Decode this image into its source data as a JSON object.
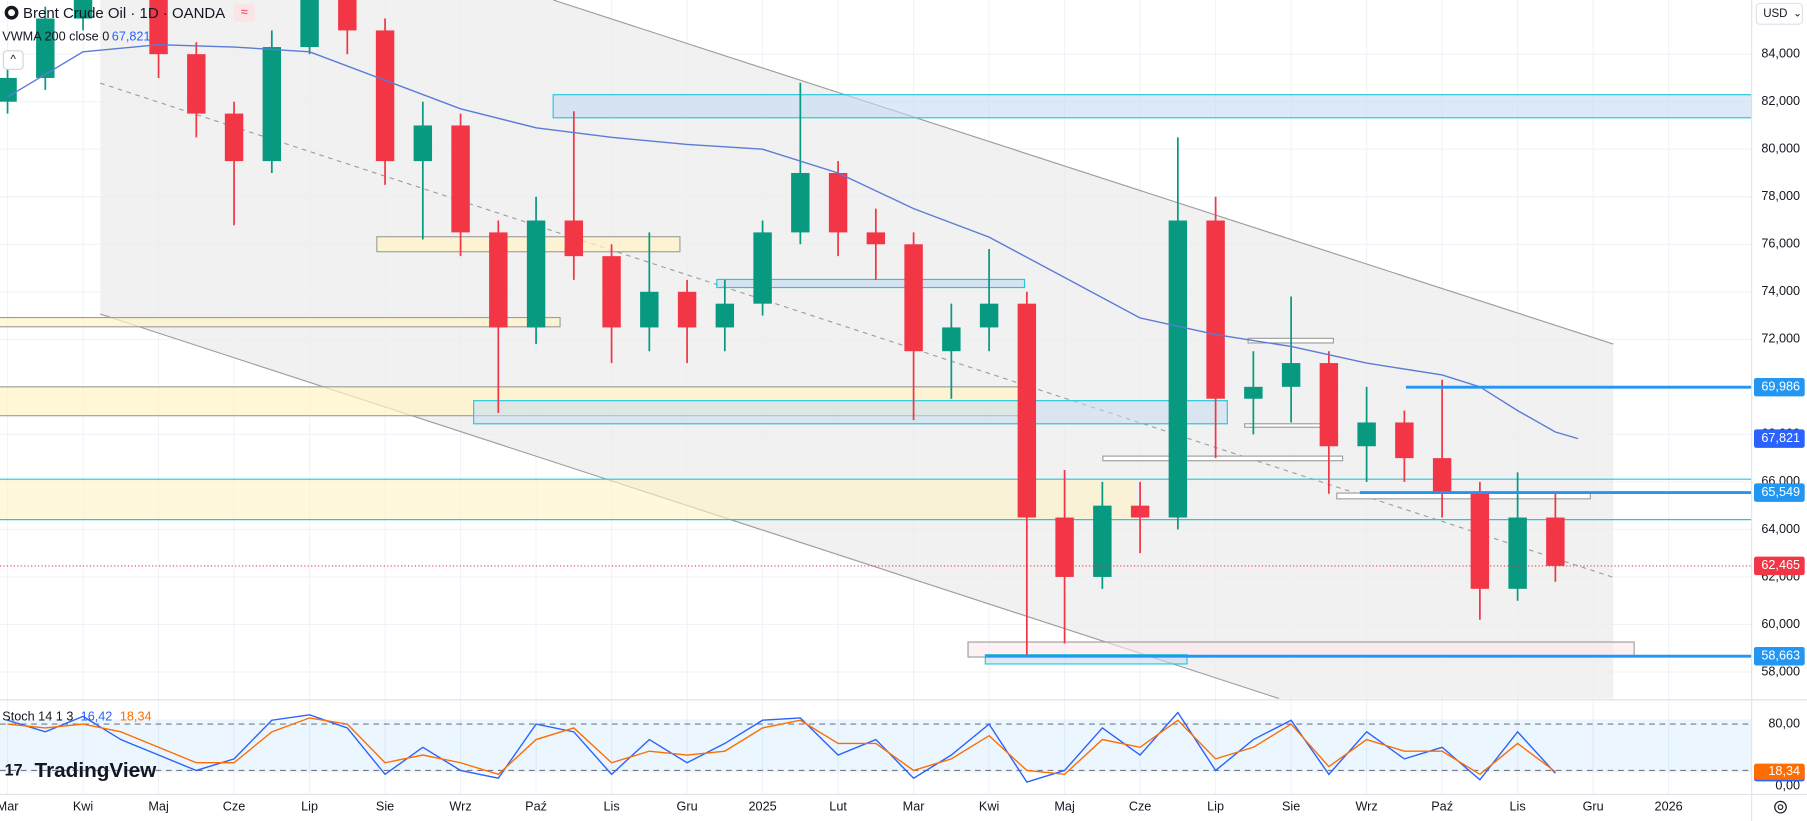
{
  "chart_data": {
    "type": "candlestick",
    "title": "Brent Crude Oil · 1D · OANDA",
    "currency": "USD",
    "indicator": {
      "name": "VWMA 200 close 0",
      "value_label": "67,821",
      "color": "#5b7bd6",
      "x": [
        0,
        1,
        2,
        3,
        4,
        5,
        6,
        7,
        8,
        9,
        10,
        11,
        12,
        13,
        14,
        15,
        16,
        17,
        18,
        19,
        19.5,
        20,
        20.5,
        20.8
      ],
      "values": [
        82.2,
        84.1,
        84.4,
        84.3,
        84.1,
        82.9,
        81.7,
        80.9,
        80.5,
        80.2,
        80.0,
        79.0,
        77.5,
        76.3,
        74.6,
        72.9,
        72.2,
        71.7,
        71.0,
        70.5,
        70.0,
        69.0,
        68.1,
        67.821
      ]
    },
    "candles": {
      "up_color": "#089981",
      "down_color": "#f23645",
      "x": [
        0,
        0.5,
        1,
        1.5,
        2,
        2.5,
        3,
        3.5,
        4,
        4.5,
        5,
        5.5,
        6,
        6.5,
        7,
        7.5,
        8,
        8.5,
        9,
        9.5,
        10,
        10.5,
        11,
        11.5,
        12,
        12.5,
        13,
        13.5,
        14,
        14.5,
        15,
        15.5,
        16,
        16.5,
        17,
        17.5,
        18,
        18.5,
        19,
        19.5,
        20,
        20.5
      ],
      "open": [
        82.0,
        83.0,
        85.5,
        88.5,
        89.0,
        84.0,
        81.5,
        79.5,
        84.3,
        86.5,
        85.0,
        79.5,
        81.0,
        76.5,
        72.5,
        77.0,
        75.5,
        72.5,
        74.0,
        72.5,
        73.5,
        76.5,
        79.0,
        76.5,
        76.0,
        71.5,
        72.5,
        73.5,
        64.5,
        62.0,
        65.0,
        64.5,
        77.0,
        69.5,
        70.0,
        71.0,
        67.5,
        68.5,
        67.0,
        65.5,
        61.5,
        64.5
      ],
      "high": [
        83.8,
        86.0,
        89.5,
        91.0,
        89.5,
        84.5,
        82.0,
        85.0,
        87.5,
        87.0,
        85.5,
        82.0,
        81.5,
        77.0,
        78.0,
        81.6,
        76.0,
        76.5,
        74.5,
        74.5,
        77.0,
        82.8,
        79.5,
        77.5,
        76.5,
        73.5,
        75.8,
        74.0,
        66.5,
        66.0,
        66.0,
        80.5,
        78.0,
        71.5,
        73.8,
        71.5,
        70.0,
        69.0,
        70.3,
        66.0,
        66.4,
        65.5
      ],
      "low": [
        81.5,
        82.5,
        85.0,
        87.5,
        83.0,
        80.5,
        76.8,
        79.0,
        84.0,
        84.0,
        78.5,
        76.2,
        75.5,
        68.9,
        71.8,
        74.5,
        71.0,
        71.5,
        71.0,
        71.5,
        73.0,
        76.0,
        75.5,
        74.5,
        68.6,
        69.5,
        71.5,
        58.7,
        59.2,
        61.5,
        63.0,
        64.0,
        67.0,
        68.0,
        68.5,
        65.5,
        66.0,
        66.0,
        64.5,
        60.2,
        61.0,
        61.8
      ],
      "close": [
        83.0,
        85.5,
        88.5,
        89.0,
        84.0,
        81.5,
        79.5,
        84.3,
        86.5,
        85.0,
        79.5,
        81.0,
        76.5,
        72.5,
        77.0,
        75.5,
        72.5,
        74.0,
        72.5,
        73.5,
        76.5,
        79.0,
        76.5,
        76.0,
        71.5,
        72.5,
        73.5,
        64.5,
        62.0,
        65.0,
        64.5,
        77.0,
        69.5,
        70.0,
        71.0,
        67.5,
        68.5,
        67.0,
        65.5,
        61.5,
        64.5,
        62.465
      ]
    },
    "ylim": [
      56.88,
      86.28
    ],
    "yticks": [
      {
        "value": 58,
        "label": "58,000"
      },
      {
        "value": 60,
        "label": "60,000"
      },
      {
        "value": 62,
        "label": "62,000"
      },
      {
        "value": 64,
        "label": "64,000"
      },
      {
        "value": 66,
        "label": "66,000"
      },
      {
        "value": 68,
        "label": "68,000"
      },
      {
        "value": 70,
        "label": "70,000"
      },
      {
        "value": 72,
        "label": "72,000"
      },
      {
        "value": 74,
        "label": "74,000"
      },
      {
        "value": 76,
        "label": "76,000"
      },
      {
        "value": 78,
        "label": "78,000"
      },
      {
        "value": 80,
        "label": "80,000"
      },
      {
        "value": 82,
        "label": "82,000"
      },
      {
        "value": 84,
        "label": "84,000"
      }
    ],
    "xlim": [
      -0.1,
      23.1
    ],
    "xticks": [
      {
        "value": 0,
        "label": "Mar"
      },
      {
        "value": 1,
        "label": "Kwi"
      },
      {
        "value": 2,
        "label": "Maj"
      },
      {
        "value": 3,
        "label": "Cze"
      },
      {
        "value": 4,
        "label": "Lip"
      },
      {
        "value": 5,
        "label": "Sie"
      },
      {
        "value": 6,
        "label": "Wrz"
      },
      {
        "value": 7,
        "label": "Paź"
      },
      {
        "value": 8,
        "label": "Lis"
      },
      {
        "value": 9,
        "label": "Gru"
      },
      {
        "value": 10,
        "label": "2025"
      },
      {
        "value": 11,
        "label": "Lut"
      },
      {
        "value": 12,
        "label": "Mar"
      },
      {
        "value": 13,
        "label": "Kwi"
      },
      {
        "value": 14,
        "label": "Maj"
      },
      {
        "value": 15,
        "label": "Cze"
      },
      {
        "value": 16,
        "label": "Lip"
      },
      {
        "value": 17,
        "label": "Sie"
      },
      {
        "value": 18,
        "label": "Wrz"
      },
      {
        "value": 19,
        "label": "Paź"
      },
      {
        "value": 20,
        "label": "Lis"
      },
      {
        "value": 21,
        "label": "Gru"
      },
      {
        "value": 22,
        "label": "2026"
      }
    ],
    "grid": true,
    "price_levels": [
      {
        "value": 69.986,
        "label": "69,986",
        "color": "#2196f3"
      },
      {
        "value": 67.821,
        "label": "67,821",
        "color": "#2962ff"
      },
      {
        "value": 65.549,
        "label": "65,549",
        "color": "#2196f3"
      },
      {
        "value": 62.465,
        "label": "62,465",
        "color": "#f23645"
      },
      {
        "value": 58.663,
        "label": "58,663",
        "color": "#2196f3"
      }
    ],
    "oscillator": {
      "name": "Stoch 14 1 3",
      "ylim": [
        -14,
        108.5
      ],
      "yticks": [
        {
          "value": 80,
          "label": "80,00"
        },
        {
          "value": 0,
          "label": "0,00"
        }
      ],
      "bands": [
        20,
        80
      ],
      "series": [
        {
          "name": "%K",
          "label": "16,42",
          "color": "#2962ff",
          "values": [
            85,
            70,
            90,
            60,
            40,
            20,
            35,
            85,
            92,
            75,
            15,
            50,
            20,
            10,
            80,
            70,
            15,
            60,
            30,
            55,
            85,
            88,
            40,
            60,
            10,
            40,
            80,
            5,
            20,
            75,
            40,
            95,
            20,
            60,
            85,
            15,
            70,
            35,
            50,
            8,
            70,
            16.42
          ]
        },
        {
          "name": "%D",
          "label": "18,34",
          "color": "#ff6d00",
          "values": [
            80,
            75,
            80,
            70,
            50,
            30,
            30,
            70,
            88,
            80,
            30,
            40,
            30,
            15,
            60,
            75,
            30,
            45,
            40,
            45,
            75,
            85,
            55,
            55,
            20,
            35,
            65,
            20,
            15,
            60,
            50,
            85,
            35,
            50,
            80,
            25,
            60,
            45,
            45,
            15,
            55,
            18.34
          ]
        }
      ]
    },
    "brand": "TradingView"
  }
}
